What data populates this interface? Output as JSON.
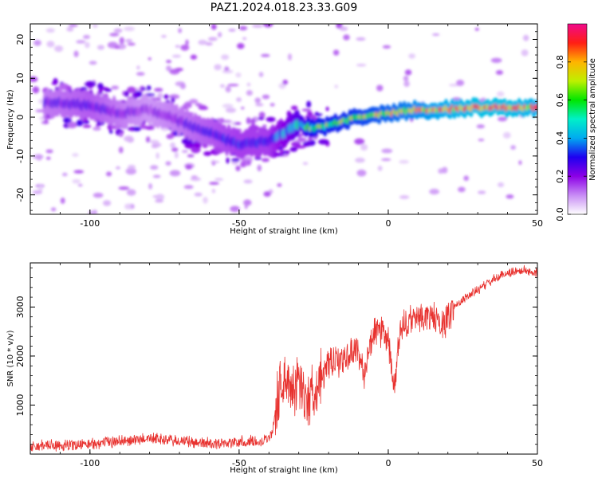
{
  "figure": {
    "title": "PAZ1.2024.018.23.33.G09"
  },
  "chart_data": [
    {
      "type": "heatmap",
      "title": "PAZ1.2024.018.23.33.G09",
      "xlabel": "Height of straight line (km)",
      "ylabel": "Frequency (Hz)",
      "xlim": [
        -120,
        50
      ],
      "ylim": [
        -25,
        24
      ],
      "x_ticks": [
        -100,
        -50,
        0,
        50
      ],
      "y_ticks": [
        -20,
        -10,
        0,
        10,
        20
      ],
      "x_tick_labels": [
        "-100",
        "-50",
        "0",
        "50"
      ],
      "y_tick_labels": [
        "-20",
        "-10",
        "0",
        "10",
        "20"
      ],
      "colorbar": {
        "label": "Normalized spectral amplitude",
        "range": [
          0,
          1
        ],
        "ticks": [
          0.0,
          0.2,
          0.4,
          0.6,
          0.8
        ],
        "tick_labels": [
          "0.0",
          "0.2",
          "0.4",
          "0.6",
          "0.8"
        ],
        "colormap": "gist_ncar-like"
      },
      "ridge": {
        "x": [
          -115,
          -100,
          -90,
          -80,
          -70,
          -60,
          -50,
          -40,
          -35,
          -30,
          -25,
          -20,
          -10,
          0,
          10,
          20,
          30,
          40,
          50
        ],
        "y": [
          4,
          3,
          1,
          2,
          -1,
          -4,
          -7,
          -6,
          -4,
          -2,
          -3,
          -2,
          0,
          1,
          2,
          2,
          2.5,
          2.5,
          2.5
        ],
        "amplitude": [
          0.25,
          0.3,
          0.25,
          0.2,
          0.25,
          0.3,
          0.35,
          0.35,
          0.45,
          0.55,
          0.7,
          0.7,
          0.75,
          0.8,
          0.85,
          0.9,
          0.95,
          0.95,
          0.9
        ]
      }
    },
    {
      "type": "line",
      "xlabel": "Height of straight line (km)",
      "ylabel": "SNR (10 * v/v)",
      "xlim": [
        -120,
        50
      ],
      "ylim": [
        0,
        3900
      ],
      "x_ticks": [
        -100,
        -50,
        0,
        50
      ],
      "y_ticks": [
        1000,
        2000,
        3000
      ],
      "x_tick_labels": [
        "-100",
        "-50",
        "0",
        "50"
      ],
      "y_tick_labels": [
        "1000",
        "2000",
        "3000"
      ],
      "color": "#e8322f",
      "series": [
        {
          "x": [
            -120,
            -110,
            -100,
            -90,
            -85,
            -80,
            -70,
            -60,
            -50,
            -42,
            -39,
            -36,
            -33,
            -30,
            -27,
            -24,
            -20,
            -15,
            -10,
            -8,
            -5,
            -2,
            0,
            2,
            4,
            6,
            10,
            15,
            18,
            22,
            25,
            30,
            35,
            40,
            45,
            50
          ],
          "y": [
            150,
            180,
            200,
            270,
            280,
            330,
            260,
            220,
            240,
            270,
            400,
            1500,
            1400,
            1450,
            1100,
            1450,
            1800,
            1950,
            2150,
            1600,
            2500,
            2450,
            2300,
            1300,
            2500,
            2650,
            2800,
            2800,
            2600,
            3000,
            3150,
            3350,
            3550,
            3700,
            3750,
            3700
          ]
        }
      ]
    }
  ]
}
